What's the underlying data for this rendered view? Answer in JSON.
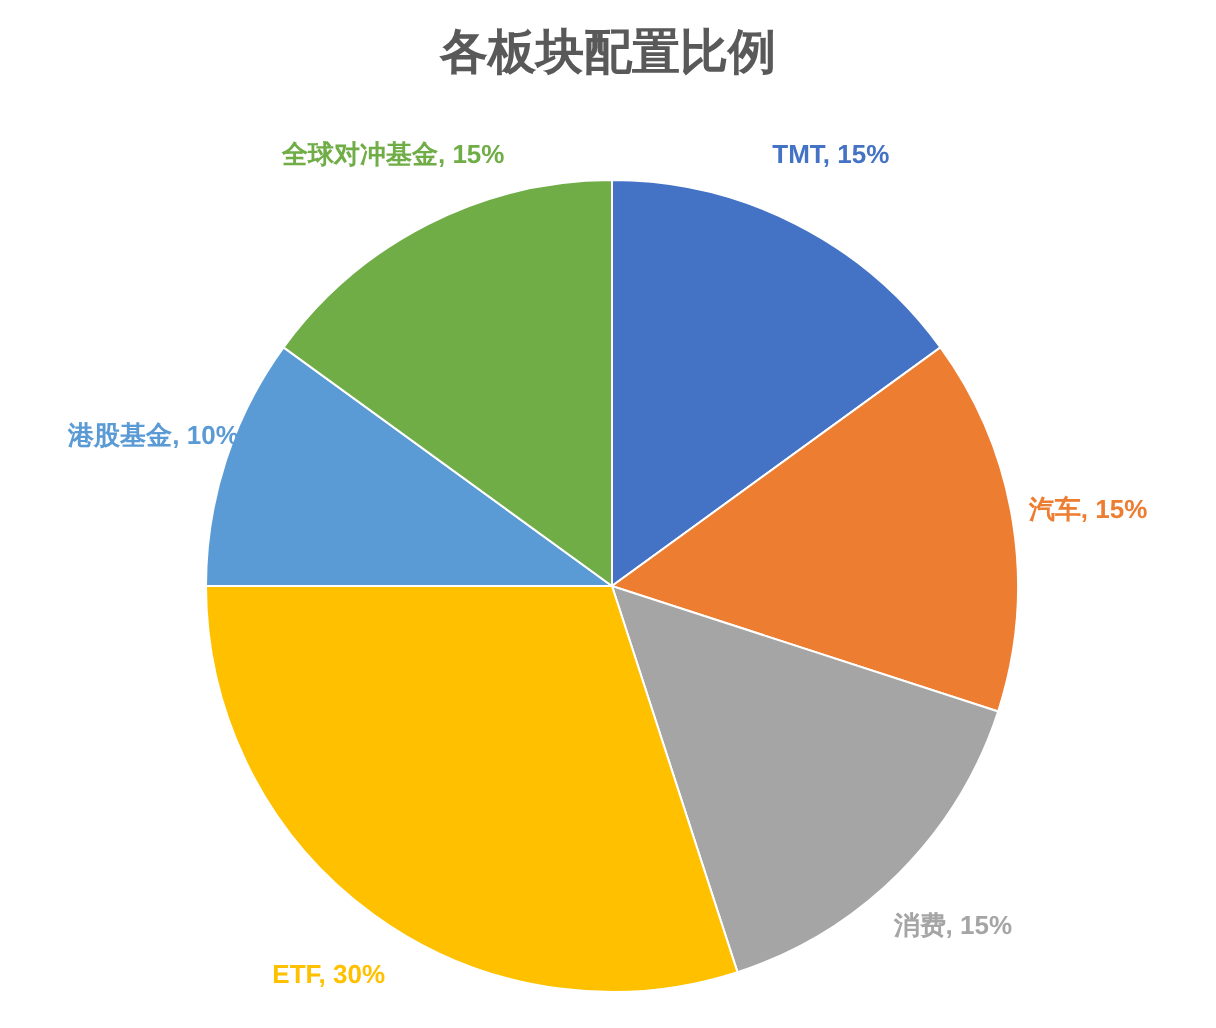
{
  "chart_data": {
    "type": "pie",
    "title": "各板块配置比例",
    "categories": [
      "TMT",
      "汽车",
      "消费",
      "ETF",
      "港股基金",
      "全球对冲基金"
    ],
    "values": [
      15,
      15,
      15,
      30,
      10,
      15
    ],
    "value_labels": [
      "15%",
      "15%",
      "15%",
      "30%",
      "10%",
      "15%"
    ],
    "colors": [
      "#4472c4",
      "#ed7d31",
      "#a5a5a5",
      "#ffc000",
      "#5b9bd5",
      "#70ad47"
    ],
    "legend": false
  }
}
